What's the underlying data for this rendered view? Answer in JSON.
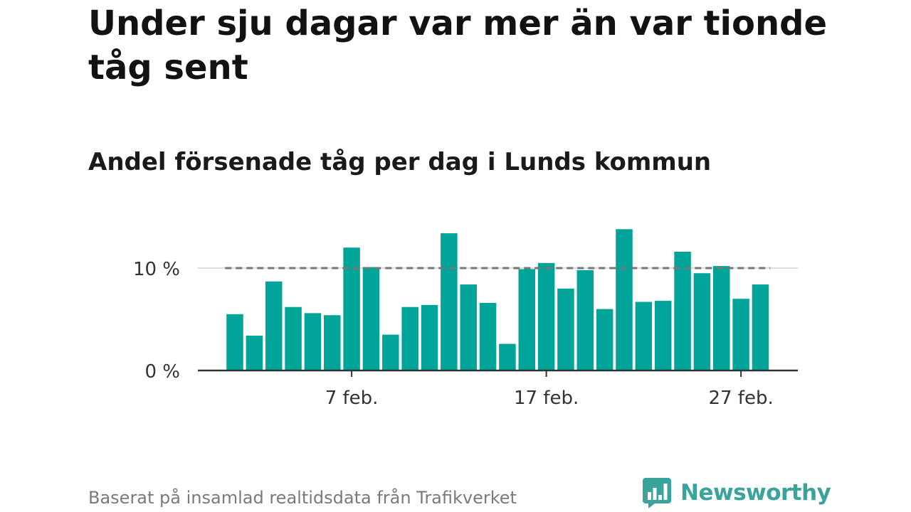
{
  "title": "Under sju dagar var mer än var tionde tåg sent",
  "subtitle": "Andel försenade tåg per dag i Lunds kommun",
  "source": "Baserat på insamlad realtidsdata från Trafikverket",
  "brand": {
    "name": "Newsworthy",
    "logo_icon": "bar-chart-speech-bubble-icon"
  },
  "colors": {
    "bar": "#00a499",
    "reference_line": "#777777",
    "grid": "#dddddd",
    "axis": "#333333",
    "brand": "#3aa39c"
  },
  "chart_data": {
    "type": "bar",
    "x_unit": "day (February)",
    "x": [
      1,
      2,
      3,
      4,
      5,
      6,
      7,
      8,
      9,
      10,
      11,
      12,
      13,
      14,
      15,
      16,
      17,
      18,
      19,
      20,
      21,
      22,
      23,
      24,
      25,
      26,
      27,
      28
    ],
    "values": [
      5.5,
      3.4,
      8.7,
      6.2,
      5.6,
      5.4,
      12.0,
      10.1,
      3.5,
      6.2,
      6.4,
      13.4,
      8.4,
      6.6,
      2.6,
      9.9,
      10.5,
      8.0,
      9.8,
      6.0,
      13.8,
      6.7,
      6.8,
      11.6,
      9.5,
      10.2,
      7.0,
      8.4
    ],
    "x_ticks": [
      {
        "x": 7,
        "label": "7 feb."
      },
      {
        "x": 17,
        "label": "17 feb."
      },
      {
        "x": 27,
        "label": "27 feb."
      }
    ],
    "y_ticks": [
      {
        "y": 0,
        "label": "0 %"
      },
      {
        "y": 10,
        "label": "10 %"
      }
    ],
    "reference_line": 10,
    "ylim": [
      0,
      15
    ],
    "grid": true
  }
}
